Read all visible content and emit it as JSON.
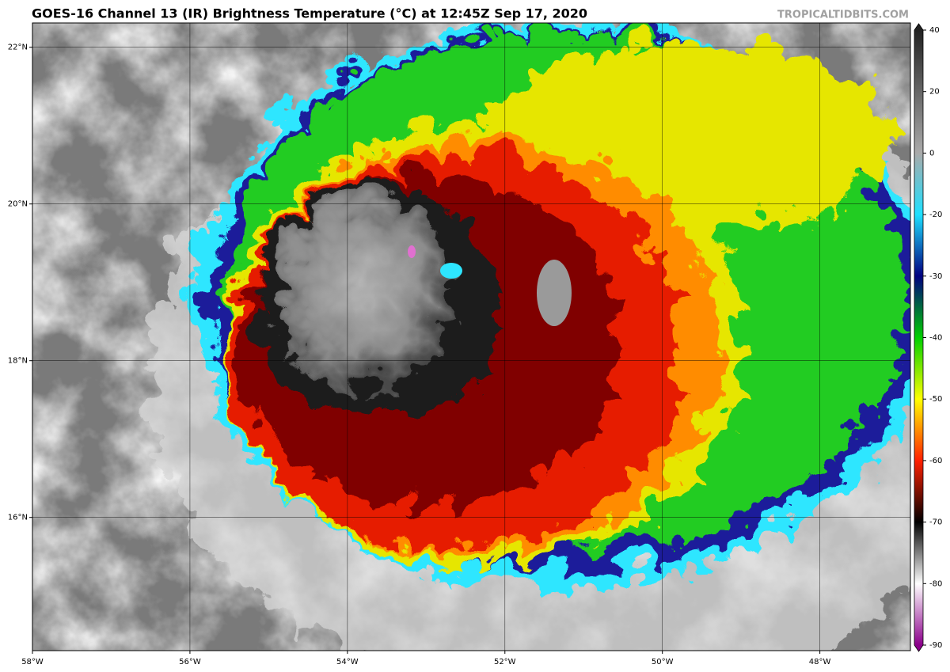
{
  "header": {
    "title": "GOES-16 Channel 13 (IR) Brightness Temperature (°C) at 12:45Z Sep 17, 2020",
    "credit": "TROPICALTIDBITS.COM"
  },
  "map": {
    "xlim": [
      -58,
      -46.85
    ],
    "ylim": [
      14.3,
      22.31
    ],
    "xticks": [
      {
        "value": -58,
        "label": "58°W"
      },
      {
        "value": -56,
        "label": "56°W"
      },
      {
        "value": -54,
        "label": "54°W"
      },
      {
        "value": -52,
        "label": "52°W"
      },
      {
        "value": -50,
        "label": "50°W"
      },
      {
        "value": -48,
        "label": "48°W"
      }
    ],
    "yticks": [
      {
        "value": 16,
        "label": "16°N"
      },
      {
        "value": 18,
        "label": "18°N"
      },
      {
        "value": 20,
        "label": "20°N"
      },
      {
        "value": 22,
        "label": "22°N"
      }
    ]
  },
  "colorbar": {
    "ticks": [
      40,
      20,
      0,
      -20,
      -30,
      -40,
      -50,
      -60,
      -70,
      -80,
      -90
    ],
    "colors": [
      "#222222",
      "#666666",
      "#aaaaaa",
      "#1ee0ff",
      "#000080",
      "#00d000",
      "#ffff00",
      "#ff2000",
      "#000000",
      "#ffffff",
      "#8b008b"
    ]
  }
}
